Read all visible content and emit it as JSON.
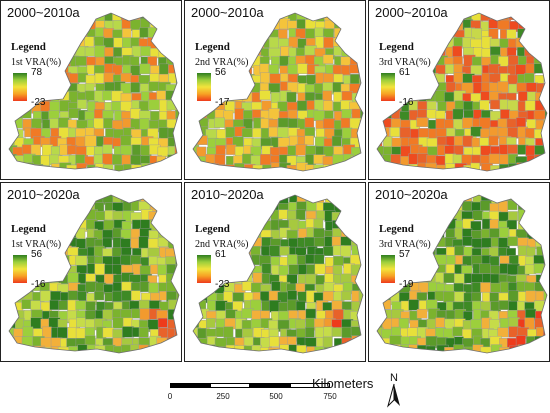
{
  "panels": [
    {
      "period": "2000~2010a",
      "legend": "Legend",
      "variable": "1st VRA(%)",
      "max": "78",
      "min": "-23",
      "scheme": "warm"
    },
    {
      "period": "2000~2010a",
      "legend": "Legend",
      "variable": "2nd VRA(%)",
      "max": "56",
      "min": "-17",
      "scheme": "warm"
    },
    {
      "period": "2000~2010a",
      "legend": "Legend",
      "variable": "3rd VRA(%)",
      "max": "61",
      "min": "-16",
      "scheme": "hot"
    },
    {
      "period": "2010~2020a",
      "legend": "Legend",
      "variable": "1st VRA(%)",
      "max": "56",
      "min": "-16",
      "scheme": "green"
    },
    {
      "period": "2010~2020a",
      "legend": "Legend",
      "variable": "2nd VRA(%)",
      "max": "61",
      "min": "-23",
      "scheme": "green"
    },
    {
      "period": "2010~2020a",
      "legend": "Legend",
      "variable": "3rd VRA(%)",
      "max": "57",
      "min": "-19",
      "scheme": "green"
    }
  ],
  "scale": {
    "ticks": [
      "0",
      "250",
      "500",
      "750"
    ],
    "units": "Kilometers"
  },
  "north": "N",
  "colors": {
    "dark_green": "#2e7d1f",
    "green": "#7bb32e",
    "yellow": "#e8e03a",
    "orange": "#f29a2e",
    "red": "#e43b1f"
  }
}
